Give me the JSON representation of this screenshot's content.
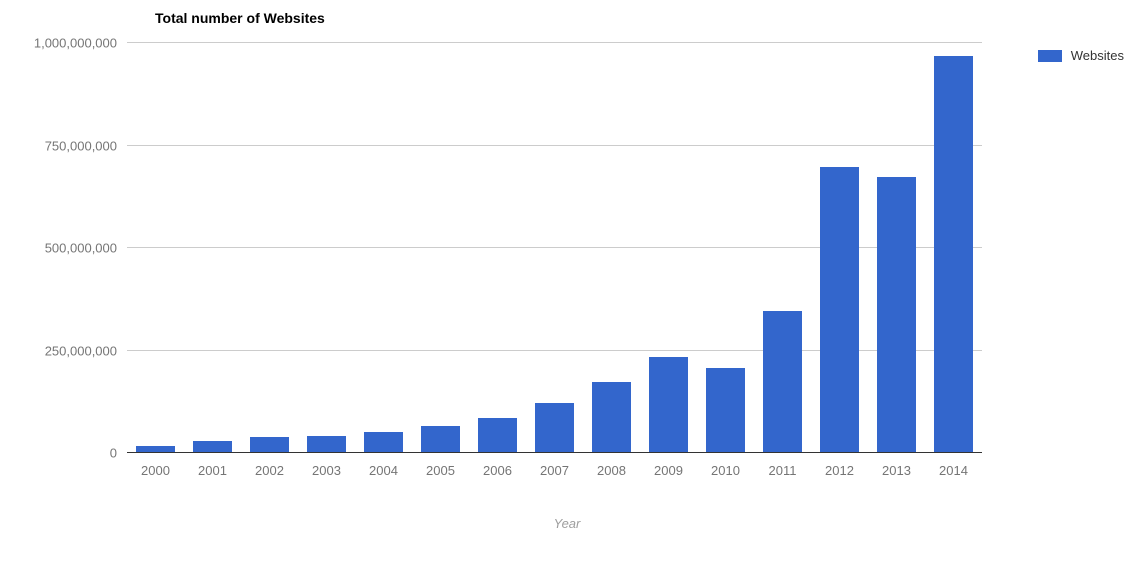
{
  "chart": {
    "type": "bar",
    "title": "Total number of Websites",
    "title_fontsize": 14,
    "title_fontweight": "bold",
    "title_color": "#000000",
    "x_axis_label": "Year",
    "x_axis_label_color": "#9e9e9e",
    "categories": [
      "2000",
      "2001",
      "2002",
      "2003",
      "2004",
      "2005",
      "2006",
      "2007",
      "2008",
      "2009",
      "2010",
      "2011",
      "2012",
      "2013",
      "2014"
    ],
    "values": [
      17000000,
      30000000,
      40000000,
      42000000,
      52000000,
      65000000,
      85000000,
      122000000,
      172000000,
      235000000,
      207000000,
      346000000,
      697000000,
      672000000,
      968000000
    ],
    "bar_color": "#3366cc",
    "ylim": [
      0,
      1000000000
    ],
    "ytick_labels": [
      "0",
      "250,000,000",
      "500,000,000",
      "750,000,000",
      "1,000,000,000"
    ],
    "ytick_values": [
      0,
      250000000,
      500000000,
      750000000,
      1000000000
    ],
    "tick_label_fontsize": 13,
    "tick_label_color": "#757575",
    "background_color": "#ffffff",
    "grid_color": "#cccccc",
    "baseline_color": "#333333",
    "bar_width_ratio": 0.68,
    "legend": {
      "label": "Websites",
      "swatch_color": "#3366cc"
    }
  }
}
